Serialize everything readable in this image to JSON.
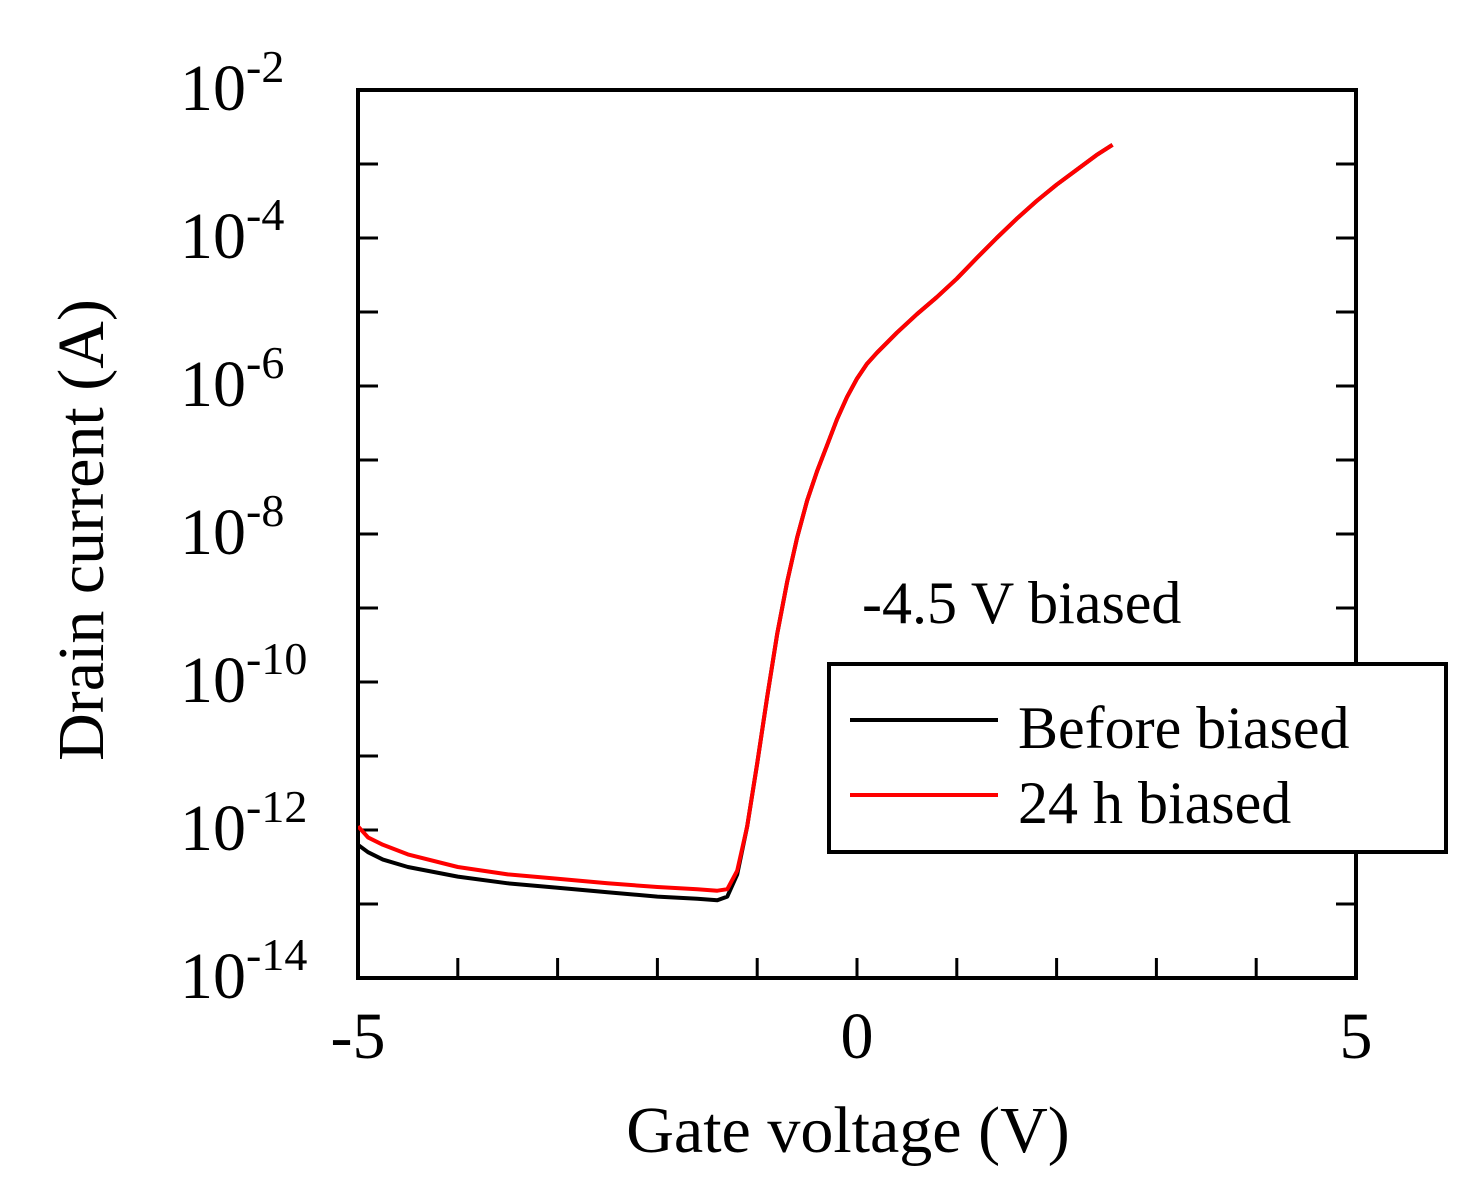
{
  "chart_data": {
    "type": "line",
    "title": "",
    "xlabel": "Gate voltage (V)",
    "ylabel": "Drain current (A)",
    "xlim": [
      -5,
      5
    ],
    "ylim_log10": [
      -14,
      -2
    ],
    "y_scale": "log",
    "x_ticks": [
      {
        "value": -5,
        "label": "-5"
      },
      {
        "value": 0,
        "label": "0"
      },
      {
        "value": 5,
        "label": "5"
      }
    ],
    "y_ticks": [
      {
        "exp": -2,
        "base": "10",
        "sup": "-2"
      },
      {
        "exp": -4,
        "base": "10",
        "sup": "-4"
      },
      {
        "exp": -6,
        "base": "10",
        "sup": "-6"
      },
      {
        "exp": -8,
        "base": "10",
        "sup": "-8"
      },
      {
        "exp": -10,
        "base": "10",
        "sup": "-10"
      },
      {
        "exp": -12,
        "base": "10",
        "sup": "-12"
      },
      {
        "exp": -14,
        "base": "10",
        "sup": "-14"
      }
    ],
    "annotation": "-4.5 V biased",
    "legend_position": "right",
    "series": [
      {
        "name": "Before biased",
        "color": "#000000",
        "x": [
          -5.0,
          -4.9,
          -4.75,
          -4.5,
          -4.0,
          -3.5,
          -3.0,
          -2.5,
          -2.0,
          -1.6,
          -1.4,
          -1.3,
          -1.2,
          -1.1,
          -1.0,
          -0.9,
          -0.8,
          -0.7,
          -0.6,
          -0.5,
          -0.4,
          -0.3,
          -0.2,
          -0.1,
          0.0,
          0.1,
          0.2,
          0.4,
          0.6,
          0.8,
          1.0,
          1.2,
          1.4,
          1.6,
          1.8,
          2.0,
          2.2,
          2.4,
          2.56
        ],
        "log10_y": [
          -12.2,
          -12.3,
          -12.4,
          -12.5,
          -12.63,
          -12.72,
          -12.78,
          -12.84,
          -12.9,
          -12.93,
          -12.95,
          -12.9,
          -12.6,
          -11.95,
          -11.1,
          -10.2,
          -9.35,
          -8.65,
          -8.05,
          -7.55,
          -7.15,
          -6.8,
          -6.45,
          -6.15,
          -5.9,
          -5.7,
          -5.55,
          -5.28,
          -5.03,
          -4.8,
          -4.55,
          -4.27,
          -4.0,
          -3.74,
          -3.5,
          -3.28,
          -3.08,
          -2.88,
          -2.74
        ]
      },
      {
        "name": "24 h biased",
        "color": "#ff0000",
        "x": [
          -5.0,
          -4.9,
          -4.75,
          -4.5,
          -4.0,
          -3.5,
          -3.0,
          -2.5,
          -2.0,
          -1.6,
          -1.4,
          -1.3,
          -1.2,
          -1.1,
          -1.0,
          -0.9,
          -0.8,
          -0.7,
          -0.6,
          -0.5,
          -0.4,
          -0.3,
          -0.2,
          -0.1,
          0.0,
          0.1,
          0.2,
          0.4,
          0.6,
          0.8,
          1.0,
          1.2,
          1.4,
          1.6,
          1.8,
          2.0,
          2.2,
          2.4,
          2.56
        ],
        "log10_y": [
          -11.95,
          -12.1,
          -12.2,
          -12.33,
          -12.5,
          -12.6,
          -12.66,
          -12.72,
          -12.77,
          -12.8,
          -12.82,
          -12.8,
          -12.55,
          -11.95,
          -11.1,
          -10.2,
          -9.35,
          -8.65,
          -8.05,
          -7.55,
          -7.15,
          -6.8,
          -6.45,
          -6.15,
          -5.9,
          -5.7,
          -5.55,
          -5.28,
          -5.03,
          -4.8,
          -4.55,
          -4.27,
          -4.0,
          -3.74,
          -3.5,
          -3.28,
          -3.08,
          -2.88,
          -2.74
        ]
      }
    ]
  }
}
